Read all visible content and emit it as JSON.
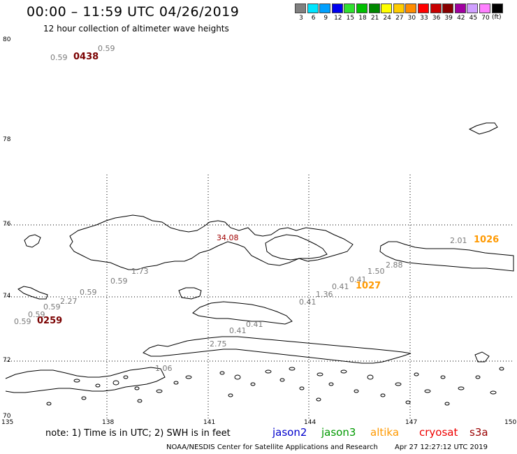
{
  "header": {
    "title": "00:00 – 11:59 UTC 04/26/2019",
    "subtitle": "12 hour collection of altimeter wave heights"
  },
  "legend": {
    "unit": "(ft)",
    "items": [
      {
        "label": "3",
        "color": "#808080"
      },
      {
        "label": "6",
        "color": "#00e5ff"
      },
      {
        "label": "9",
        "color": "#00a0ff"
      },
      {
        "label": "12",
        "color": "#0000ee"
      },
      {
        "label": "15",
        "color": "#30e030"
      },
      {
        "label": "18",
        "color": "#00c000"
      },
      {
        "label": "21",
        "color": "#008800"
      },
      {
        "label": "24",
        "color": "#ffff00"
      },
      {
        "label": "27",
        "color": "#ffcc00"
      },
      {
        "label": "30",
        "color": "#ff8c00"
      },
      {
        "label": "33",
        "color": "#ff0000"
      },
      {
        "label": "36",
        "color": "#c80000"
      },
      {
        "label": "39",
        "color": "#880000"
      },
      {
        "label": "42",
        "color": "#a000a0"
      },
      {
        "label": "45",
        "color": "#d0a0ff"
      },
      {
        "label": "70",
        "color": "#ff80ff"
      },
      {
        "label": "",
        "color": "#000000"
      }
    ]
  },
  "axes": {
    "lat_labels": [
      "80",
      "78",
      "76",
      "74",
      "72",
      "70"
    ],
    "lon_labels": [
      "135",
      "138",
      "141",
      "144",
      "147",
      "150"
    ]
  },
  "observations": {
    "wave_heights": [
      "0.59",
      "0.59",
      "34.08",
      "1.73",
      "0.59",
      "0.59",
      "2.27",
      "0.59",
      "0.59",
      "0.59",
      "0.41",
      "0.41",
      "2.75",
      "1.06",
      "0.41",
      "1.36",
      "0.41",
      "0.41",
      "1.50",
      "2.88",
      "2.01"
    ],
    "pass_times": [
      {
        "time": "0438",
        "satellite": "s3a"
      },
      {
        "time": "0259",
        "satellite": "s3a"
      },
      {
        "time": "1027",
        "satellite": "altika"
      },
      {
        "time": "1026",
        "satellite": "altika"
      }
    ]
  },
  "footer": {
    "note": "note:  1) Time is in UTC; 2) SWH is in feet",
    "satellites": [
      {
        "name": "jason2",
        "color": "#0000cc"
      },
      {
        "name": "jason3",
        "color": "#009900"
      },
      {
        "name": "altika",
        "color": "#ff9900"
      },
      {
        "name": "cryosat",
        "color": "#ee0000"
      },
      {
        "name": "s3a",
        "color": "#990000"
      }
    ],
    "credit": "NOAA/NESDIS Center for Satellite Applications and Research",
    "timestamp": "Apr 27 12:27:12 UTC 2019"
  }
}
